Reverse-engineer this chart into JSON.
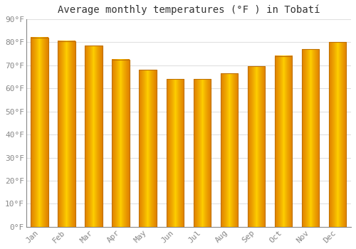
{
  "title": "Average monthly temperatures (°F ) in Tobatí",
  "months": [
    "Jan",
    "Feb",
    "Mar",
    "Apr",
    "May",
    "Jun",
    "Jul",
    "Aug",
    "Sep",
    "Oct",
    "Nov",
    "Dec"
  ],
  "values": [
    82,
    80.5,
    78.5,
    72.5,
    68,
    64,
    64,
    66.5,
    69.5,
    74,
    77,
    80
  ],
  "bar_color_edge": "#E08000",
  "bar_color_center": "#FFCC00",
  "bar_color_mid": "#FFA500",
  "background_color": "#FFFFFF",
  "ylim": [
    0,
    90
  ],
  "yticks": [
    0,
    10,
    20,
    30,
    40,
    50,
    60,
    70,
    80,
    90
  ],
  "grid_color": "#E0E0E0",
  "title_fontsize": 10,
  "tick_fontsize": 8,
  "bar_width": 0.65
}
